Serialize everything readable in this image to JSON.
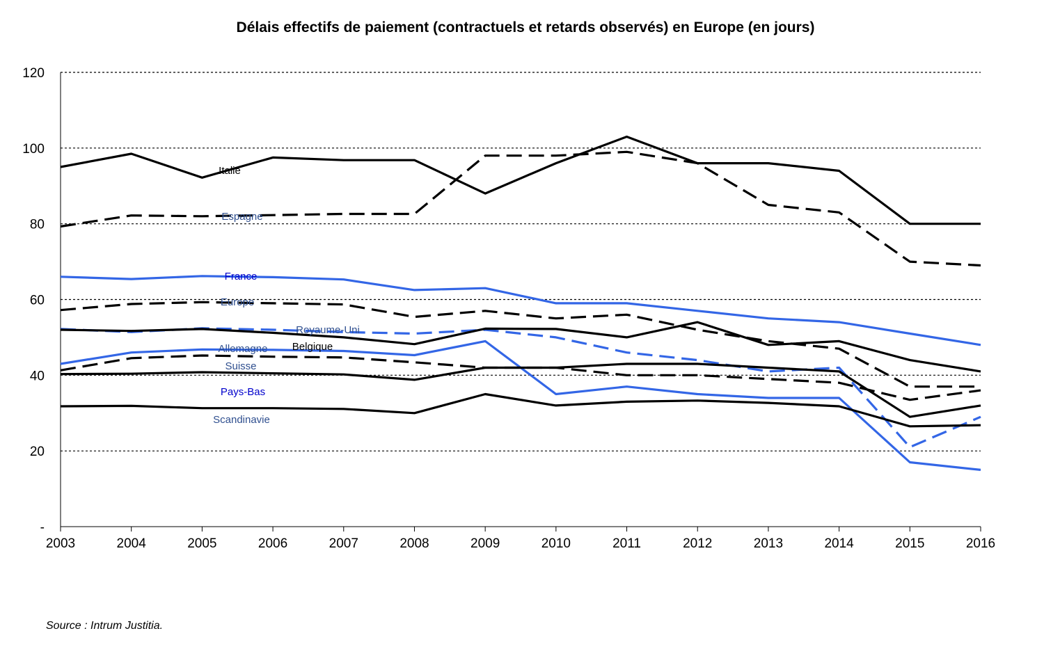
{
  "chart_data": {
    "type": "line",
    "title": "Délais effectifs de paiement (contractuels et retards observés) en Europe (en jours)",
    "source": "Source : Intrum Justitia.",
    "x": [
      "2003",
      "2004",
      "2005",
      "2006",
      "2007",
      "2008",
      "2009",
      "2010",
      "2011",
      "2012",
      "2013",
      "2014",
      "2015",
      "2016"
    ],
    "ylim": [
      0,
      120
    ],
    "yticks": [
      0,
      20,
      40,
      60,
      80,
      100,
      120
    ],
    "ytick_labels": [
      "-",
      "20",
      "40",
      "60",
      "80",
      "100",
      "120"
    ],
    "grid": "horizontal dashed",
    "series": [
      {
        "name": "Italie",
        "color": "#000000",
        "dash": "solid",
        "label_color": "#000000",
        "values": [
          95,
          98.5,
          92.2,
          97.5,
          96.8,
          96.8,
          88,
          96,
          103,
          96,
          96,
          94,
          80,
          80
        ]
      },
      {
        "name": "Espagne",
        "color": "#000000",
        "dash": "dashed",
        "label_color": "#2F4F8F",
        "values": [
          79.3,
          82.2,
          82,
          82.3,
          82.6,
          82.6,
          98,
          98,
          99,
          96,
          85,
          83,
          70,
          69
        ]
      },
      {
        "name": "France",
        "color": "#3366E6",
        "dash": "solid",
        "label_color": "#0000CC",
        "values": [
          66,
          65.4,
          66.2,
          65.9,
          65.3,
          62.5,
          63,
          59,
          59,
          57,
          55,
          54,
          51,
          48
        ]
      },
      {
        "name": "Europe",
        "color": "#000000",
        "dash": "dashed",
        "label_color": "#2F4F8F",
        "values": [
          57.2,
          58.8,
          59.3,
          59,
          58.7,
          55.4,
          57,
          55,
          56,
          52,
          49,
          47,
          37,
          37
        ]
      },
      {
        "name": "Royaume-Uni",
        "color": "#3366E6",
        "dash": "dashed",
        "label_color": "#2F4F8F",
        "values": [
          52.2,
          51.4,
          52.4,
          52,
          51.4,
          51,
          52,
          50,
          46,
          44,
          41,
          42,
          21,
          29
        ]
      },
      {
        "name": "Belgique",
        "color": "#000000",
        "dash": "solid",
        "label_color": "#000000",
        "values": [
          52,
          51.7,
          52.2,
          51.2,
          50,
          48.2,
          52.3,
          52.2,
          50,
          54,
          48,
          49,
          44,
          41
        ]
      },
      {
        "name": "Allemagne",
        "color": "#3366E6",
        "dash": "solid",
        "label_color": "#2F4F8F",
        "values": [
          43,
          46,
          46.8,
          46.7,
          46.4,
          45.3,
          49,
          35,
          37,
          35,
          34,
          34,
          17,
          15
        ]
      },
      {
        "name": "Suisse",
        "color": "#000000",
        "dash": "dashed",
        "label_color": "#2F4F8F",
        "values": [
          41.3,
          44.5,
          45.2,
          44.9,
          44.7,
          43.4,
          42,
          42,
          40,
          40,
          39,
          38,
          33.5,
          36
        ]
      },
      {
        "name": "Pays-Bas",
        "color": "#000000",
        "dash": "solid",
        "label_color": "#0000CC",
        "values": [
          40.3,
          40.4,
          40.8,
          40.5,
          40.2,
          38.8,
          42,
          42,
          43,
          43,
          42,
          41,
          29,
          32
        ]
      },
      {
        "name": "Scandinavie",
        "color": "#000000",
        "dash": "solid",
        "label_color": "#2F4F8F",
        "values": [
          31.8,
          31.9,
          31.3,
          31.3,
          31.1,
          30,
          35,
          32,
          33,
          33.3,
          32.7,
          31.8,
          26.5,
          26.8
        ]
      }
    ]
  }
}
